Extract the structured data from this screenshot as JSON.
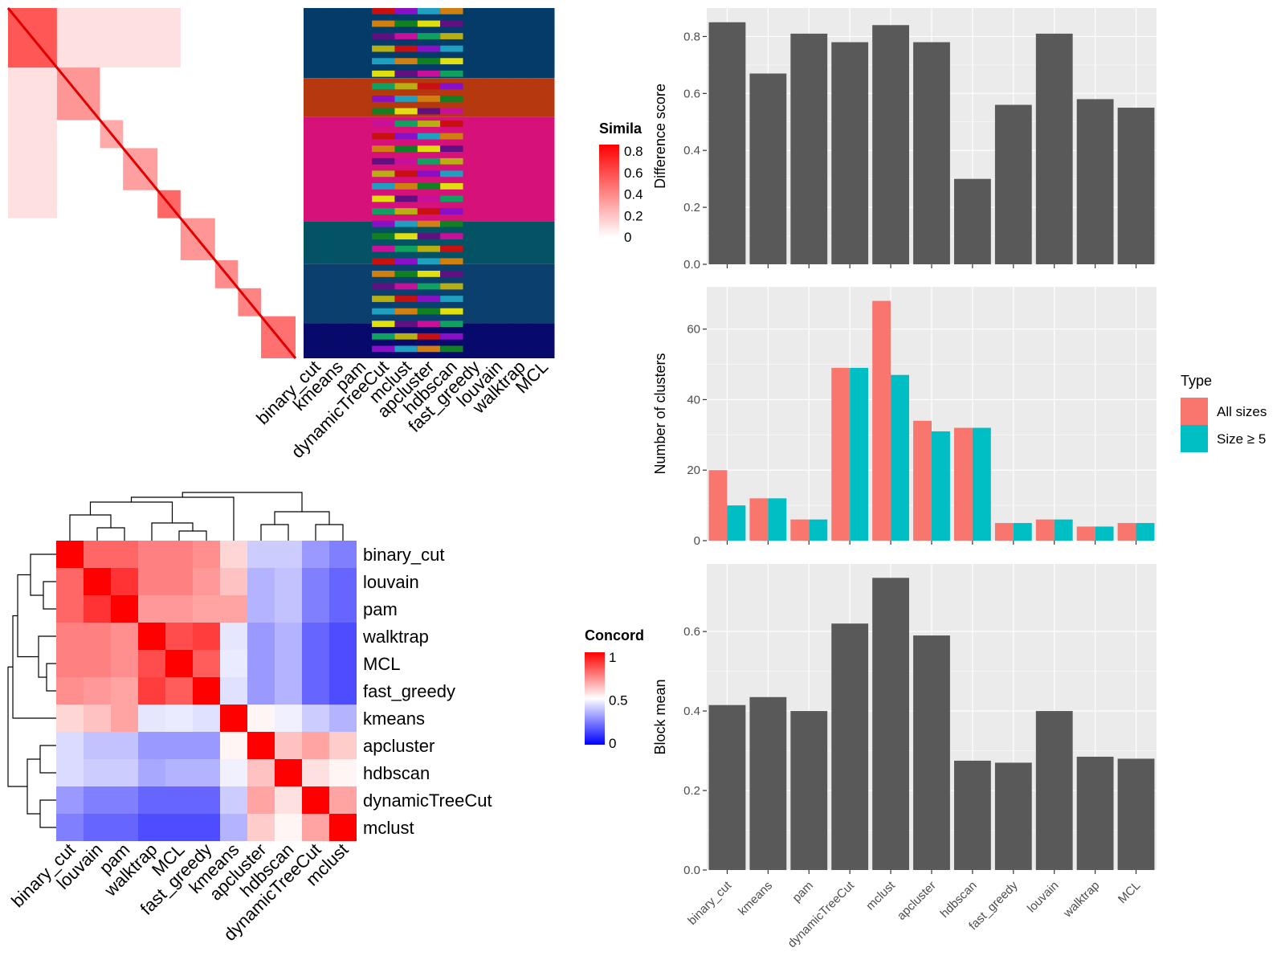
{
  "colors": {
    "panel_bg": "#ebebeb",
    "bar_dark": "#595959",
    "all_sizes": "#f8766d",
    "size_ge5": "#00bfc4",
    "sim_high": "#ff0000",
    "conc_low": "#0000ff",
    "conc_mid": "#ffffff",
    "conc_high": "#ff0000"
  },
  "similarity_heatmap": {
    "legend_title": "Simila",
    "legend_ticks": [
      "0.8",
      "0.6",
      "0.4",
      "0.2",
      "0"
    ],
    "columns": [
      "binary_cut",
      "kmeans",
      "pam",
      "dynamicTreeCut",
      "mclust",
      "apcluster",
      "hdbscan",
      "fast_greedy",
      "louvain",
      "walktrap",
      "MCL"
    ]
  },
  "concordance_heatmap": {
    "legend_title": "Concord",
    "legend_ticks": [
      "1",
      "0.5",
      "0"
    ],
    "labels": [
      "binary_cut",
      "louvain",
      "pam",
      "walktrap",
      "MCL",
      "fast_greedy",
      "kmeans",
      "apcluster",
      "hdbscan",
      "dynamicTreeCut",
      "mclust"
    ]
  },
  "legend": {
    "title": "Type",
    "items": [
      "All sizes",
      "Size ≥ 5"
    ]
  },
  "chart_data": [
    {
      "type": "bar",
      "categories": [
        "binary_cut",
        "kmeans",
        "pam",
        "dynamicTreeCut",
        "mclust",
        "apcluster",
        "hdbscan",
        "fast_greedy",
        "louvain",
        "walktrap",
        "MCL"
      ],
      "values": [
        0.85,
        0.67,
        0.81,
        0.78,
        0.84,
        0.78,
        0.3,
        0.56,
        0.81,
        0.58,
        0.55
      ],
      "ylabel": "Difference score",
      "ylim": [
        0,
        0.9
      ],
      "yticks": [
        "0.0",
        "0.2",
        "0.4",
        "0.6",
        "0.8"
      ]
    },
    {
      "type": "bar",
      "categories": [
        "binary_cut",
        "kmeans",
        "pam",
        "dynamicTreeCut",
        "mclust",
        "apcluster",
        "hdbscan",
        "fast_greedy",
        "louvain",
        "walktrap",
        "MCL"
      ],
      "series": [
        {
          "name": "All sizes",
          "values": [
            20,
            12,
            6,
            49,
            68,
            34,
            32,
            5,
            6,
            4,
            5
          ]
        },
        {
          "name": "Size ≥ 5",
          "values": [
            10,
            12,
            6,
            49,
            47,
            31,
            32,
            5,
            6,
            4,
            5
          ]
        }
      ],
      "ylabel": "Number of clusters",
      "ylim": [
        0,
        72
      ],
      "yticks": [
        "0",
        "20",
        "40",
        "60"
      ]
    },
    {
      "type": "bar",
      "categories": [
        "binary_cut",
        "kmeans",
        "pam",
        "dynamicTreeCut",
        "mclust",
        "apcluster",
        "hdbscan",
        "fast_greedy",
        "louvain",
        "walktrap",
        "MCL"
      ],
      "values": [
        0.415,
        0.435,
        0.4,
        0.62,
        0.735,
        0.59,
        0.275,
        0.27,
        0.4,
        0.285,
        0.28
      ],
      "ylabel": "Block mean",
      "ylim": [
        0,
        0.77
      ],
      "yticks": [
        "0.0",
        "0.2",
        "0.4",
        "0.6"
      ]
    },
    {
      "type": "heatmap",
      "rows": [
        "binary_cut",
        "louvain",
        "pam",
        "walktrap",
        "MCL",
        "fast_greedy",
        "kmeans",
        "apcluster",
        "hdbscan",
        "dynamicTreeCut",
        "mclust"
      ],
      "columns": [
        "binary_cut",
        "louvain",
        "pam",
        "walktrap",
        "MCL",
        "fast_greedy",
        "kmeans",
        "apcluster",
        "hdbscan",
        "dynamicTreeCut",
        "mclust"
      ],
      "values": [
        [
          1.0,
          0.8,
          0.8,
          0.75,
          0.75,
          0.72,
          0.58,
          0.4,
          0.4,
          0.3,
          0.25
        ],
        [
          0.8,
          1.0,
          0.9,
          0.75,
          0.75,
          0.7,
          0.62,
          0.35,
          0.38,
          0.25,
          0.2
        ],
        [
          0.8,
          0.9,
          1.0,
          0.7,
          0.7,
          0.68,
          0.68,
          0.35,
          0.38,
          0.25,
          0.2
        ],
        [
          0.75,
          0.75,
          0.72,
          1.0,
          0.85,
          0.88,
          0.45,
          0.3,
          0.35,
          0.2,
          0.15
        ],
        [
          0.75,
          0.75,
          0.72,
          0.85,
          1.0,
          0.82,
          0.46,
          0.3,
          0.35,
          0.2,
          0.15
        ],
        [
          0.72,
          0.7,
          0.68,
          0.88,
          0.82,
          1.0,
          0.44,
          0.3,
          0.35,
          0.2,
          0.15
        ],
        [
          0.58,
          0.62,
          0.68,
          0.45,
          0.46,
          0.44,
          1.0,
          0.52,
          0.47,
          0.4,
          0.35
        ],
        [
          0.43,
          0.38,
          0.38,
          0.3,
          0.3,
          0.3,
          0.52,
          1.0,
          0.62,
          0.68,
          0.6
        ],
        [
          0.43,
          0.4,
          0.4,
          0.33,
          0.35,
          0.35,
          0.47,
          0.62,
          1.0,
          0.56,
          0.52
        ],
        [
          0.3,
          0.25,
          0.25,
          0.2,
          0.2,
          0.2,
          0.4,
          0.68,
          0.56,
          1.0,
          0.68
        ],
        [
          0.25,
          0.2,
          0.2,
          0.15,
          0.15,
          0.15,
          0.35,
          0.6,
          0.52,
          0.68,
          1.0
        ]
      ]
    }
  ]
}
